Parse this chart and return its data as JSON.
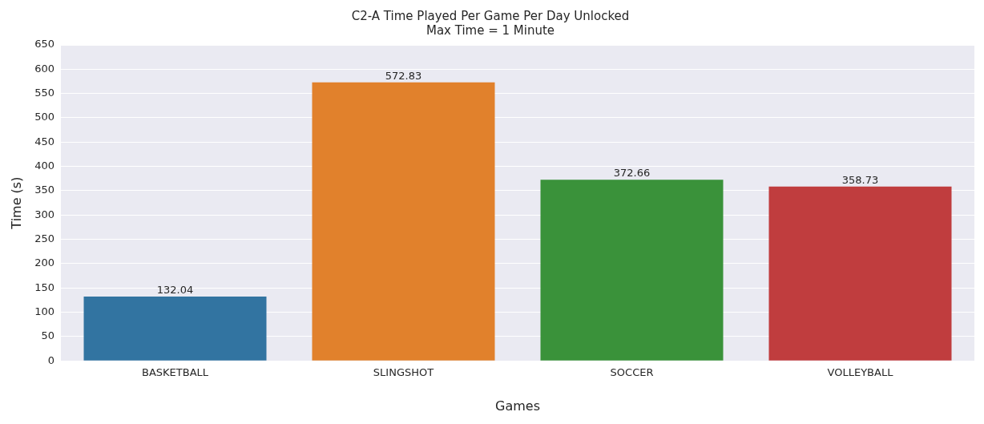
{
  "chart_data": {
    "type": "bar",
    "title": "C2-A Time Played Per Game Per Day Unlocked",
    "subtitle": "Max Time = 1 Minute",
    "xlabel": "Games",
    "ylabel": "Time (s)",
    "categories": [
      "BASKETBALL",
      "SLINGSHOT",
      "SOCCER",
      "VOLLEYBALL"
    ],
    "values": [
      132.04,
      572.83,
      372.66,
      358.73
    ],
    "colors": [
      "#3274a1",
      "#e1812c",
      "#3a923a",
      "#c03d3e"
    ],
    "ylim": [
      0,
      650
    ],
    "yticks": [
      0,
      50,
      100,
      150,
      200,
      250,
      300,
      350,
      400,
      450,
      500,
      550,
      600,
      650
    ],
    "grid": "y",
    "data_labels": true,
    "legend": false
  }
}
